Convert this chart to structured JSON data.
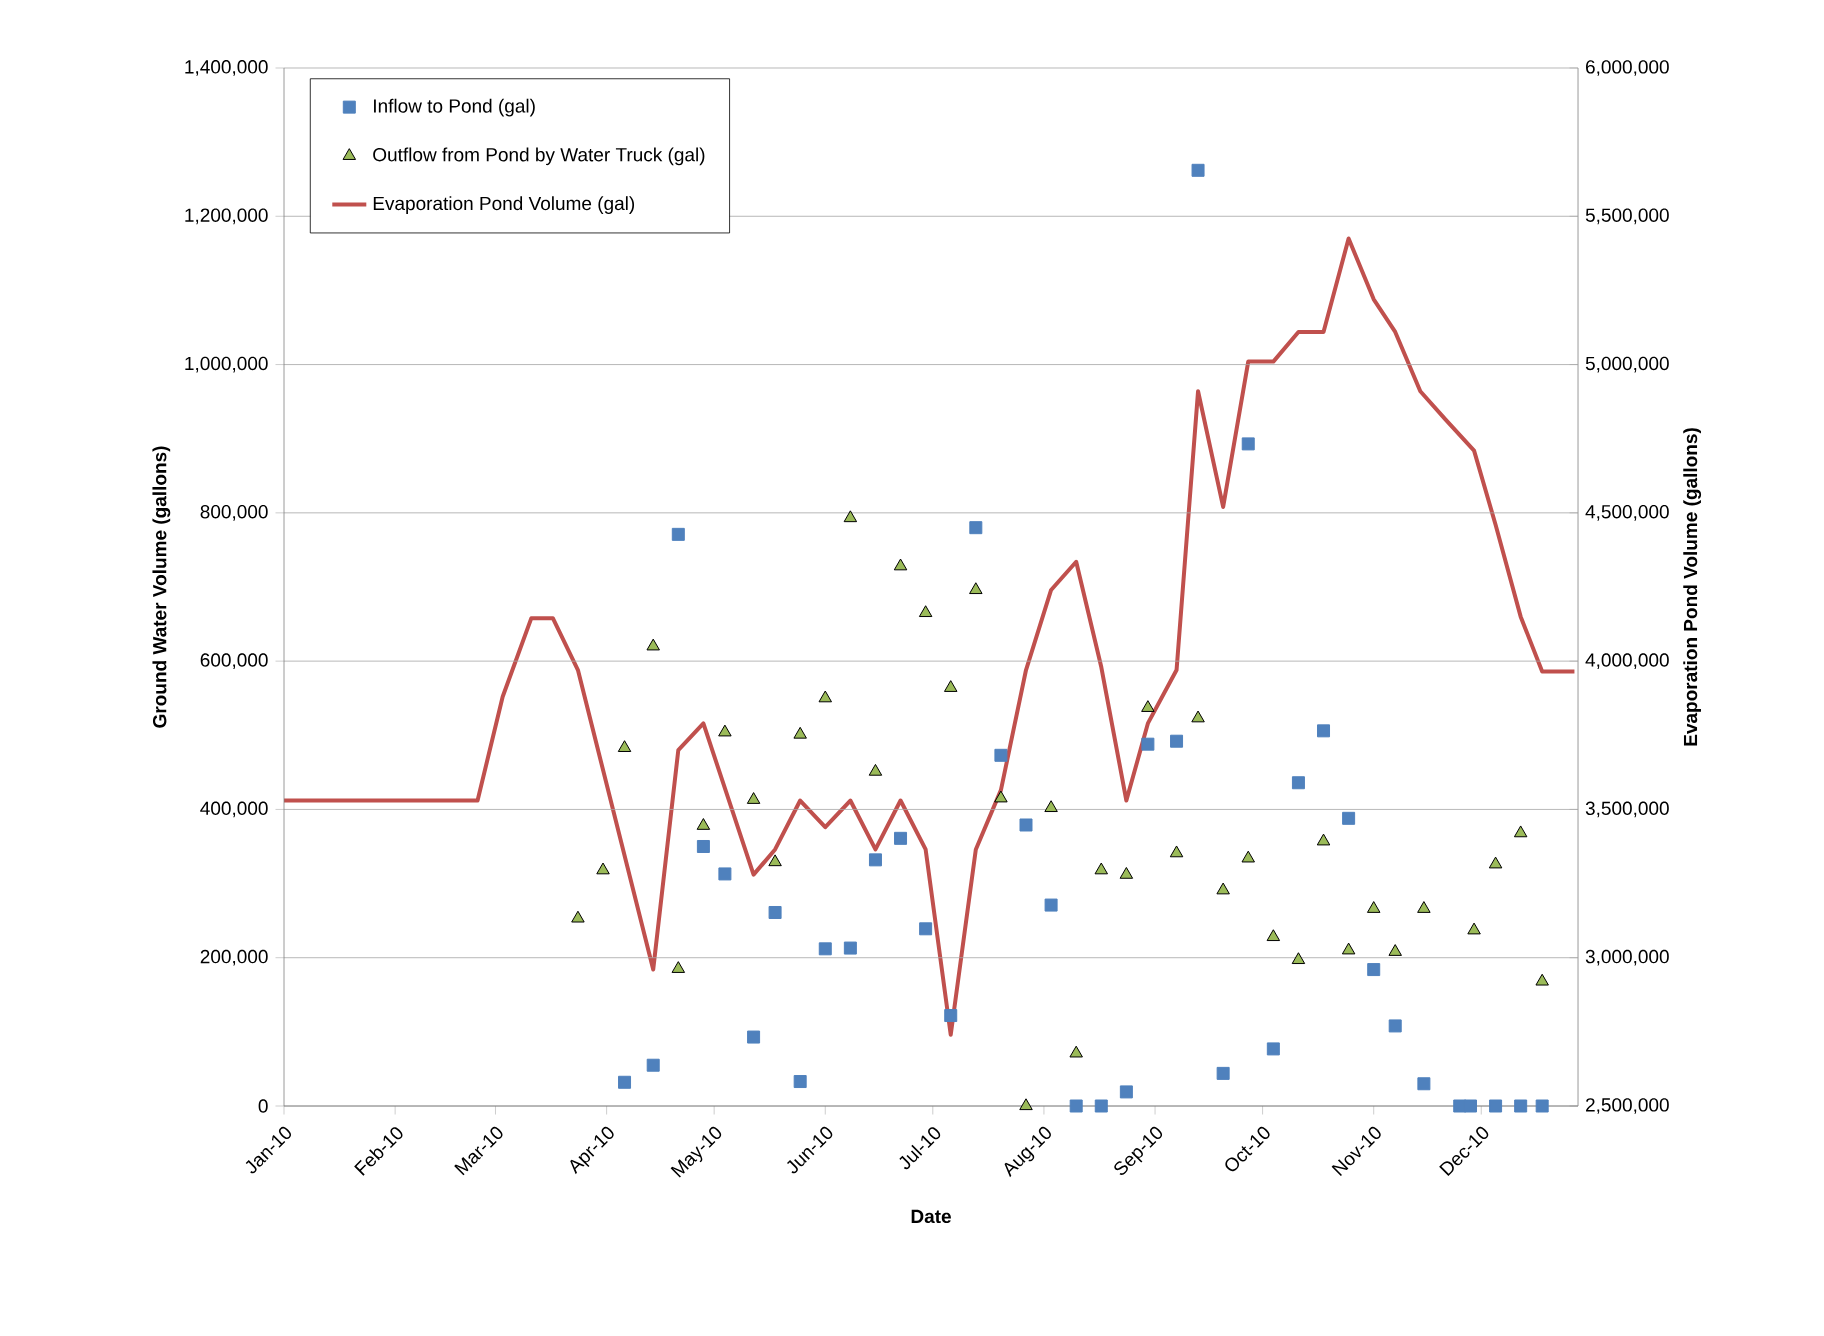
{
  "chart_data": {
    "type": "scatter",
    "xlabel": "Date",
    "ylabel": "Ground Water Volume (gallons)",
    "y2label": "Evaporation Pond Volume (gallons)",
    "xlim": [
      "2010-01-01",
      "2010-12-28"
    ],
    "xticks": [
      {
        "value": "2010-01-01",
        "label": "Jan-10"
      },
      {
        "value": "2010-02-01",
        "label": "Feb-10"
      },
      {
        "value": "2010-03-01",
        "label": "Mar-10"
      },
      {
        "value": "2010-04-01",
        "label": "Apr-10"
      },
      {
        "value": "2010-05-01",
        "label": "May-10"
      },
      {
        "value": "2010-06-01",
        "label": "Jun-10"
      },
      {
        "value": "2010-07-01",
        "label": "Jul-10"
      },
      {
        "value": "2010-08-01",
        "label": "Aug-10"
      },
      {
        "value": "2010-09-01",
        "label": "Sep-10"
      },
      {
        "value": "2010-10-01",
        "label": "Oct-10"
      },
      {
        "value": "2010-11-01",
        "label": "Nov-10"
      },
      {
        "value": "2010-12-01",
        "label": "Dec-10"
      }
    ],
    "ylim": [
      0,
      1400000
    ],
    "yticks": [
      {
        "value": 0,
        "label": "0"
      },
      {
        "value": 200000,
        "label": "200,000"
      },
      {
        "value": 400000,
        "label": "400,000"
      },
      {
        "value": 600000,
        "label": "600,000"
      },
      {
        "value": 800000,
        "label": "800,000"
      },
      {
        "value": 1000000,
        "label": "1,000,000"
      },
      {
        "value": 1200000,
        "label": "1,200,000"
      },
      {
        "value": 1400000,
        "label": "1,400,000"
      }
    ],
    "y2lim": [
      2500000,
      6000000
    ],
    "y2ticks": [
      {
        "value": 2500000,
        "label": "2,500,000"
      },
      {
        "value": 3000000,
        "label": "3,000,000"
      },
      {
        "value": 3500000,
        "label": "3,500,000"
      },
      {
        "value": 4000000,
        "label": "4,000,000"
      },
      {
        "value": 4500000,
        "label": "4,500,000"
      },
      {
        "value": 5000000,
        "label": "5,000,000"
      },
      {
        "value": 5500000,
        "label": "5,500,000"
      },
      {
        "value": 6000000,
        "label": "6,000,000"
      }
    ],
    "grid": "y",
    "legend": "top left",
    "series": [
      {
        "name": "Inflow to Pond (gal)",
        "marker": "square",
        "color": "#4f81bd",
        "x": [
          "2010-04-06",
          "2010-04-14",
          "2010-04-21",
          "2010-04-28",
          "2010-05-04",
          "2010-05-12",
          "2010-05-18",
          "2010-05-25",
          "2010-06-01",
          "2010-06-08",
          "2010-06-15",
          "2010-06-22",
          "2010-06-29",
          "2010-07-06",
          "2010-07-13",
          "2010-07-20",
          "2010-07-27",
          "2010-08-03",
          "2010-08-10",
          "2010-08-17",
          "2010-08-24",
          "2010-08-30",
          "2010-09-07",
          "2010-09-13",
          "2010-09-20",
          "2010-09-27",
          "2010-10-04",
          "2010-10-11",
          "2010-10-18",
          "2010-10-25",
          "2010-11-01",
          "2010-11-07",
          "2010-11-15",
          "2010-11-25",
          "2010-11-28",
          "2010-12-05",
          "2010-12-12",
          "2010-12-18"
        ],
        "values": [
          32000,
          55000,
          771000,
          350000,
          313000,
          93000,
          261000,
          33000,
          212000,
          213000,
          332000,
          361000,
          239000,
          122000,
          780000,
          473000,
          379000,
          271000,
          0,
          0,
          19000,
          488000,
          492000,
          1262000,
          44000,
          893000,
          77000,
          436000,
          506000,
          388000,
          184000,
          108000,
          30000,
          0,
          0,
          0,
          0,
          0
        ]
      },
      {
        "name": "Outflow from Pond by Water Truck  (gal)",
        "marker": "triangle",
        "color": "#9bbb59",
        "x": [
          "2010-03-24",
          "2010-03-31",
          "2010-04-06",
          "2010-04-14",
          "2010-04-21",
          "2010-04-28",
          "2010-05-04",
          "2010-05-12",
          "2010-05-18",
          "2010-05-25",
          "2010-06-01",
          "2010-06-08",
          "2010-06-15",
          "2010-06-22",
          "2010-06-29",
          "2010-07-06",
          "2010-07-13",
          "2010-07-20",
          "2010-07-27",
          "2010-08-03",
          "2010-08-10",
          "2010-08-17",
          "2010-08-24",
          "2010-08-30",
          "2010-09-07",
          "2010-09-13",
          "2010-09-20",
          "2010-09-27",
          "2010-10-04",
          "2010-10-11",
          "2010-10-18",
          "2010-10-25",
          "2010-11-01",
          "2010-11-07",
          "2010-11-15",
          "2010-11-29",
          "2010-12-05",
          "2010-12-12",
          "2010-12-18"
        ],
        "values": [
          253000,
          318000,
          483000,
          620000,
          185000,
          378000,
          504000,
          413000,
          329000,
          501000,
          550000,
          793000,
          451000,
          728000,
          665000,
          564000,
          696000,
          415000,
          0,
          402000,
          71000,
          318000,
          312000,
          537000,
          341000,
          523000,
          291000,
          334000,
          228000,
          197000,
          357000,
          210000,
          266000,
          208000,
          266000,
          237000,
          326000,
          368000,
          168000
        ]
      },
      {
        "name": "Evaporation Pond Volume (gal)",
        "type": "line",
        "axis": "y2",
        "marker": "none",
        "line_style": "solid",
        "color": "#c0504d",
        "x": [
          "2010-01-01",
          "2010-02-24",
          "2010-03-03",
          "2010-03-11",
          "2010-03-17",
          "2010-03-24",
          "2010-04-14",
          "2010-04-21",
          "2010-04-28",
          "2010-05-12",
          "2010-05-18",
          "2010-05-25",
          "2010-06-01",
          "2010-06-08",
          "2010-06-15",
          "2010-06-22",
          "2010-06-29",
          "2010-07-06",
          "2010-07-13",
          "2010-07-20",
          "2010-07-27",
          "2010-08-03",
          "2010-08-10",
          "2010-08-17",
          "2010-08-24",
          "2010-08-30",
          "2010-09-07",
          "2010-09-13",
          "2010-09-20",
          "2010-09-27",
          "2010-10-04",
          "2010-10-11",
          "2010-10-18",
          "2010-10-25",
          "2010-11-01",
          "2010-11-07",
          "2010-11-14",
          "2010-11-21",
          "2010-11-29",
          "2010-12-05",
          "2010-12-12",
          "2010-12-18",
          "2010-12-27"
        ],
        "values": [
          3530000,
          3530000,
          3880000,
          4145000,
          4145000,
          3970000,
          2960000,
          3700000,
          3790000,
          3280000,
          3365000,
          3530000,
          3440000,
          3530000,
          3365000,
          3530000,
          3365000,
          2740000,
          3365000,
          3565000,
          3970000,
          4240000,
          4335000,
          3980000,
          3530000,
          3790000,
          3970000,
          4910000,
          4520000,
          5010000,
          5010000,
          5110000,
          5110000,
          5425000,
          5220000,
          5110000,
          4910000,
          4815000,
          4710000,
          4460000,
          4150000,
          3965000,
          3965000
        ]
      }
    ]
  }
}
